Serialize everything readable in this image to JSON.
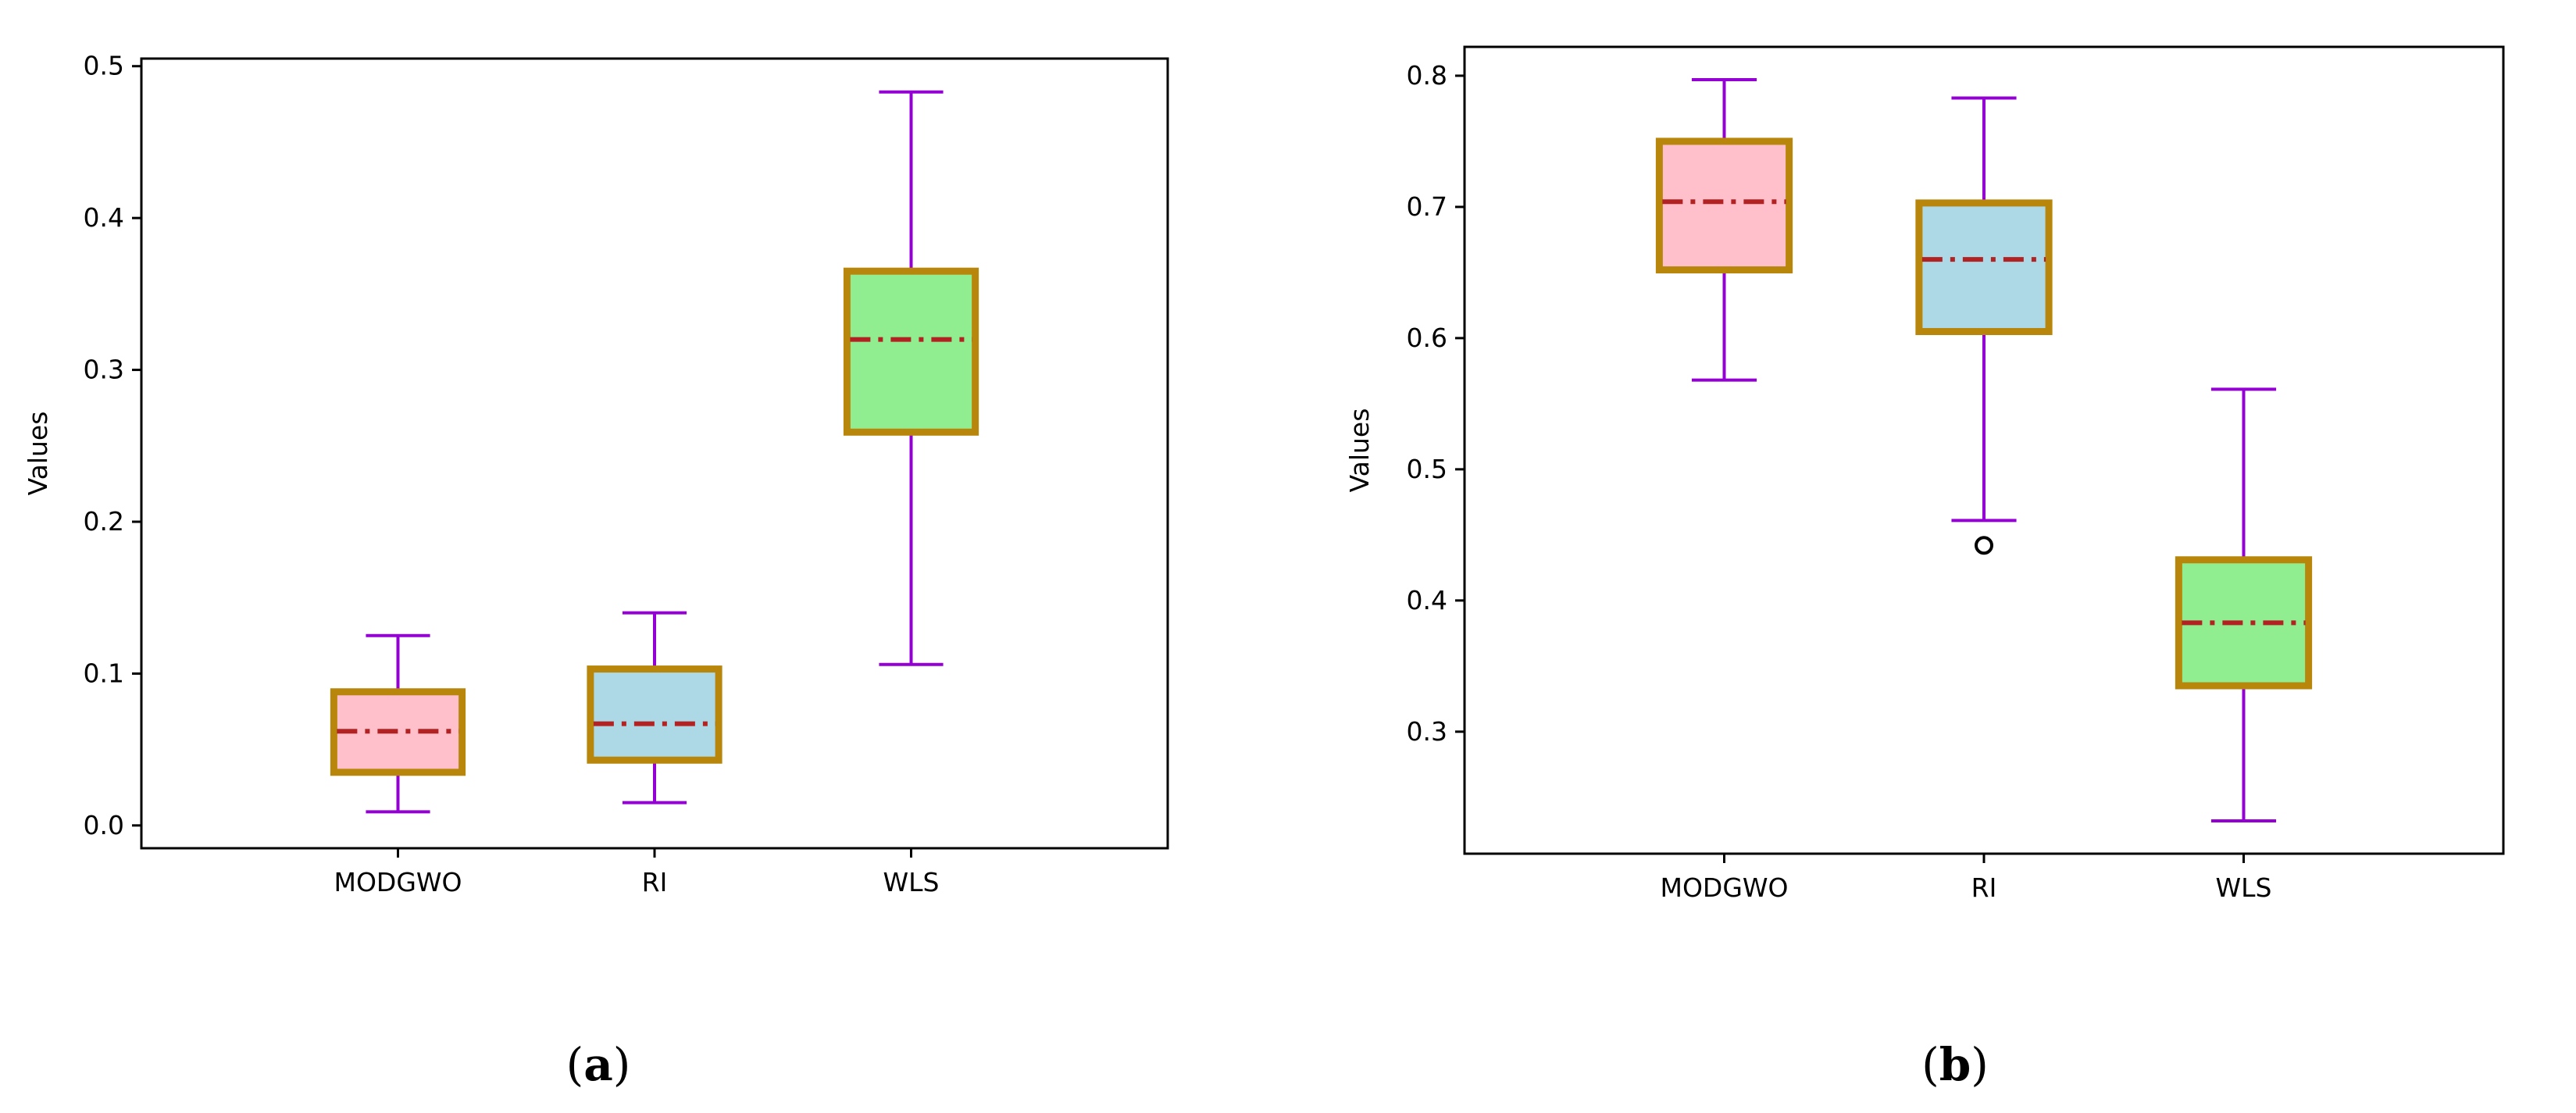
{
  "colors": {
    "box_edge": "#B8860B",
    "whisker": "#9400D3",
    "median": "#B22222",
    "box_fills": [
      "#FFC0CB",
      "#ADD8E6",
      "#90EE90"
    ],
    "axes": "#000000",
    "flier": "#000000"
  },
  "chart_data": [
    {
      "type": "box",
      "caption": {
        "open": "(",
        "letter": "a",
        "close": ")"
      },
      "ylabel": "Values",
      "xlabel": "",
      "ylim": [
        -0.015,
        0.505
      ],
      "yticks": [
        0.0,
        0.1,
        0.2,
        0.3,
        0.4,
        0.5
      ],
      "ytick_labels": [
        "0.0",
        "0.1",
        "0.2",
        "0.3",
        "0.4",
        "0.5"
      ],
      "categories": [
        "MODGWO",
        "RI",
        "WLS"
      ],
      "boxes": [
        {
          "name": "MODGWO",
          "whislo": 0.009,
          "q1": 0.035,
          "median": 0.062,
          "q3": 0.088,
          "whishi": 0.125,
          "fliers": []
        },
        {
          "name": "RI",
          "whislo": 0.015,
          "q1": 0.043,
          "median": 0.067,
          "q3": 0.103,
          "whishi": 0.14,
          "fliers": []
        },
        {
          "name": "WLS",
          "whislo": 0.106,
          "q1": 0.259,
          "median": 0.32,
          "q3": 0.365,
          "whishi": 0.483,
          "fliers": []
        }
      ],
      "grid": false
    },
    {
      "type": "box",
      "caption": {
        "open": "(",
        "letter": "b",
        "close": ")"
      },
      "ylabel": "Values",
      "xlabel": "",
      "ylim": [
        0.207,
        0.822
      ],
      "yticks": [
        0.3,
        0.4,
        0.5,
        0.6,
        0.7,
        0.8
      ],
      "ytick_labels": [
        "0.3",
        "0.4",
        "0.5",
        "0.6",
        "0.7",
        "0.8"
      ],
      "categories": [
        "MODGWO",
        "RI",
        "WLS"
      ],
      "boxes": [
        {
          "name": "MODGWO",
          "whislo": 0.568,
          "q1": 0.652,
          "median": 0.704,
          "q3": 0.75,
          "whishi": 0.797,
          "fliers": []
        },
        {
          "name": "RI",
          "whislo": 0.461,
          "q1": 0.605,
          "median": 0.66,
          "q3": 0.703,
          "whishi": 0.783,
          "fliers": [
            0.442
          ]
        },
        {
          "name": "WLS",
          "whislo": 0.232,
          "q1": 0.335,
          "median": 0.383,
          "q3": 0.431,
          "whishi": 0.561,
          "fliers": []
        }
      ],
      "grid": false
    }
  ]
}
